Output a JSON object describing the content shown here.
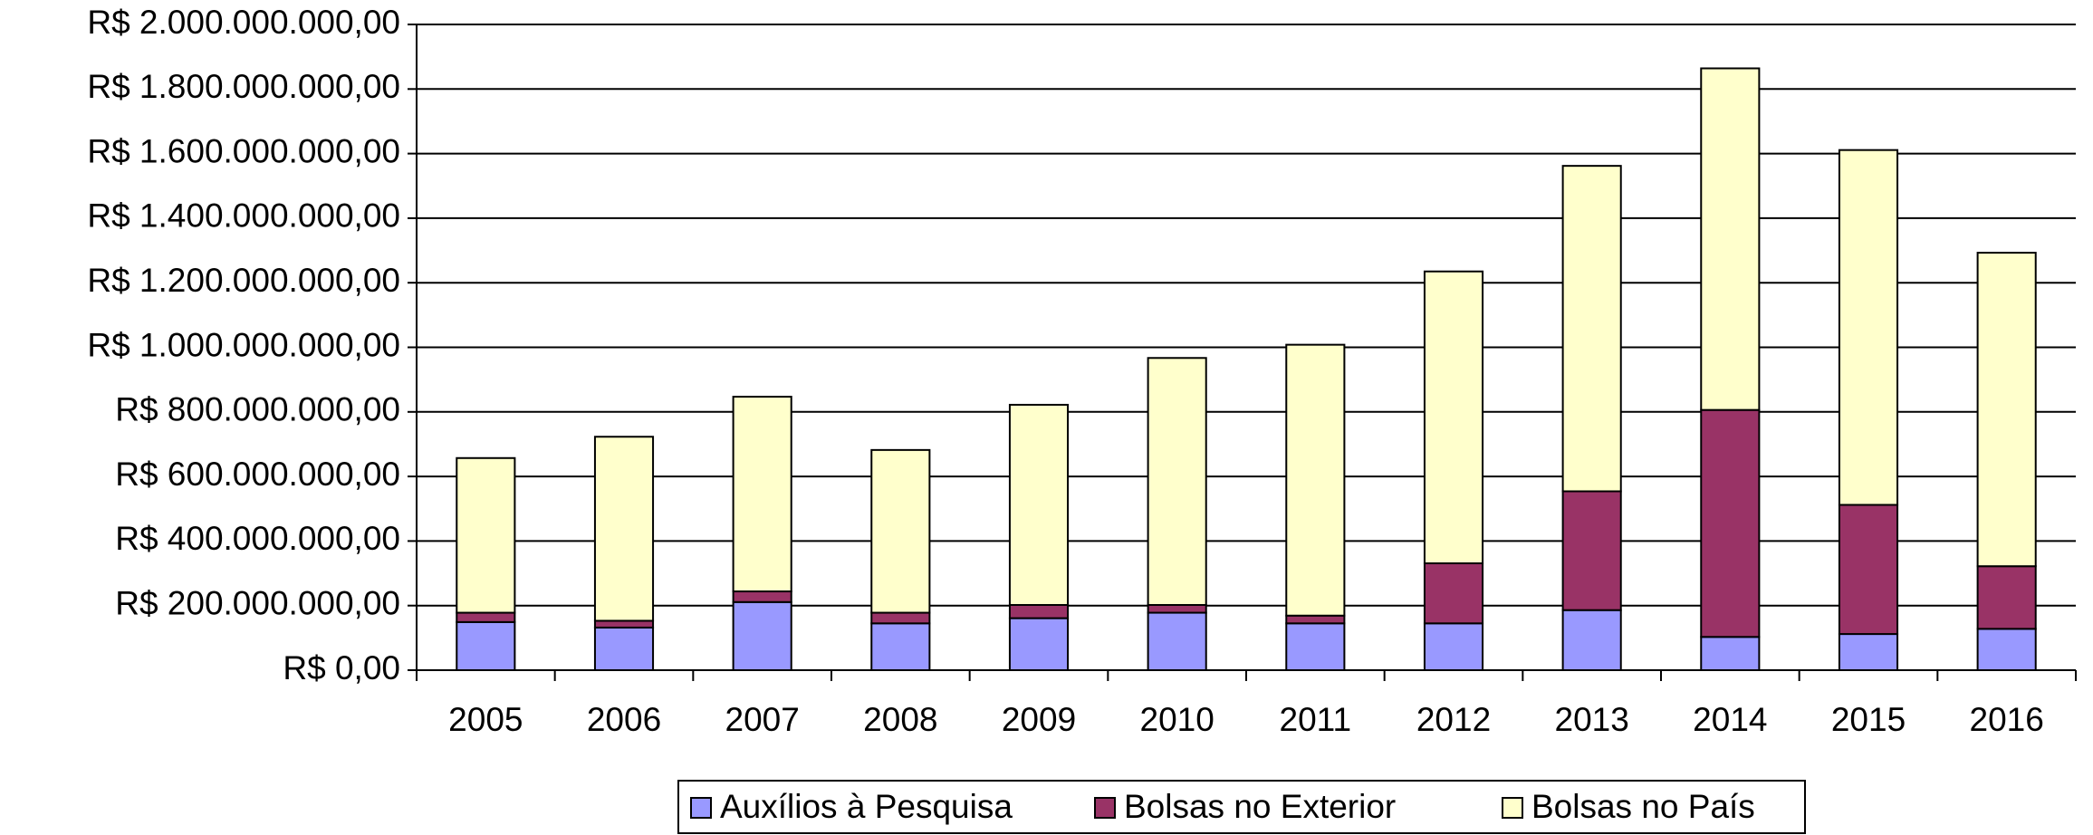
{
  "chart_data": {
    "type": "stacked_bar",
    "categories": [
      "2005",
      "2006",
      "2007",
      "2008",
      "2009",
      "2010",
      "2011",
      "2012",
      "2013",
      "2014",
      "2015",
      "2016"
    ],
    "series": [
      {
        "name": "Auxílios à Pesquisa",
        "color": "#9999ff",
        "values": [
          149000000,
          132000000,
          211000000,
          145000000,
          161000000,
          178000000,
          145000000,
          145000000,
          186000000,
          103000000,
          112000000,
          128000000
        ]
      },
      {
        "name": "Bolsas no Exterior",
        "color": "#993366",
        "values": [
          29000000,
          21000000,
          33000000,
          33000000,
          41000000,
          24000000,
          24000000,
          186000000,
          368000000,
          703000000,
          400000000,
          194000000
        ]
      },
      {
        "name": "Bolsas no País",
        "color": "#ffffcc",
        "values": [
          479000000,
          570000000,
          603000000,
          504000000,
          620000000,
          765000000,
          839000000,
          904000000,
          1008000000,
          1058000000,
          1099000000,
          971000000
        ]
      }
    ],
    "ylim": [
      0,
      2000000000
    ],
    "yticks": [
      {
        "value": 0,
        "label": "R$ 0,00"
      },
      {
        "value": 200000000,
        "label": "R$ 200.000.000,00"
      },
      {
        "value": 400000000,
        "label": "R$ 400.000.000,00"
      },
      {
        "value": 600000000,
        "label": "R$ 600.000.000,00"
      },
      {
        "value": 800000000,
        "label": "R$ 800.000.000,00"
      },
      {
        "value": 1000000000,
        "label": "R$ 1.000.000.000,00"
      },
      {
        "value": 1200000000,
        "label": "R$ 1.200.000.000,00"
      },
      {
        "value": 1400000000,
        "label": "R$ 1.400.000.000,00"
      },
      {
        "value": 1600000000,
        "label": "R$ 1.600.000.000,00"
      },
      {
        "value": 1800000000,
        "label": "R$ 1.800.000.000,00"
      },
      {
        "value": 2000000000,
        "label": "R$ 2.000.000.000,00"
      }
    ],
    "grid": true,
    "legend": "bottom"
  }
}
